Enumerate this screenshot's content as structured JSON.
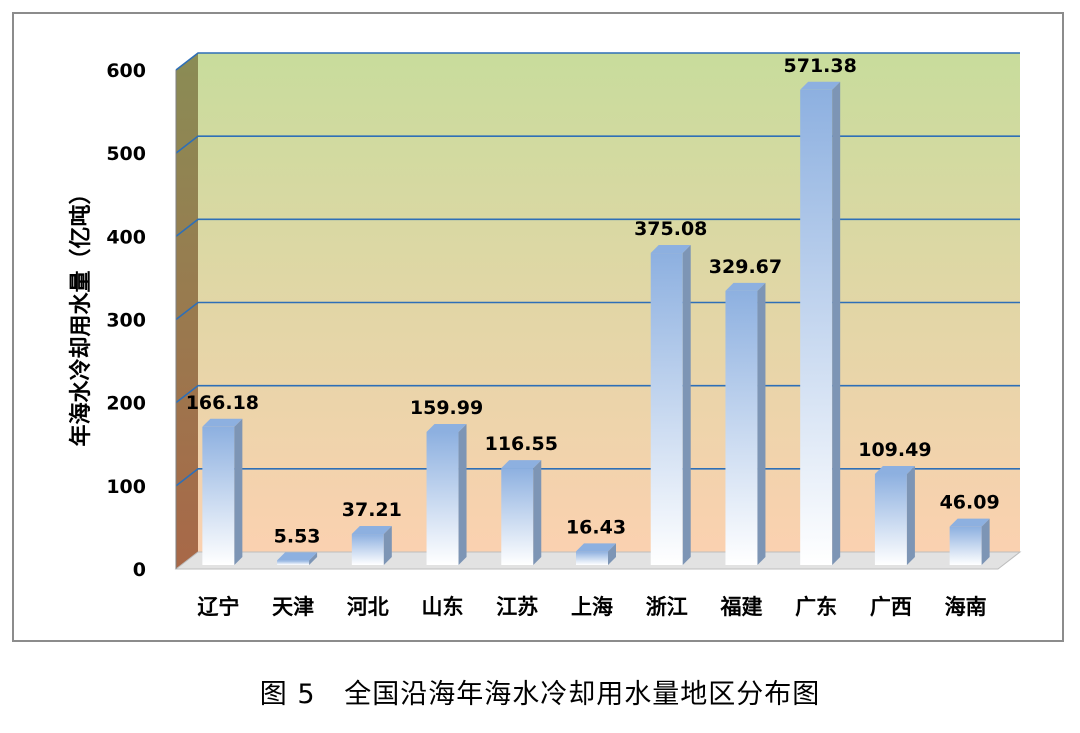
{
  "caption": "图 5   全国沿海年海水冷却用水量地区分布图",
  "chart_data": {
    "type": "bar",
    "title": "",
    "ylabel": "年海水冷却用水量（亿吨）",
    "xlabel": "",
    "ylim": [
      0,
      600
    ],
    "yticks": [
      0,
      100,
      200,
      300,
      400,
      500,
      600
    ],
    "categories": [
      "辽宁",
      "天津",
      "河北",
      "山东",
      "江苏",
      "上海",
      "浙江",
      "福建",
      "广东",
      "广西",
      "海南"
    ],
    "values": [
      166.18,
      5.53,
      37.21,
      159.99,
      116.55,
      16.43,
      375.08,
      329.67,
      571.38,
      109.49,
      46.09
    ],
    "data_labels": [
      "166.18",
      "5.53",
      "37.21",
      "159.99",
      "116.55",
      "16.43",
      "375.08",
      "329.67",
      "571.38",
      "109.49",
      "46.09"
    ],
    "grid": true,
    "colors": {
      "wall_top": "#c8dc9c",
      "wall_bottom": "#fbd1b0",
      "gridline": "#2e6fb7",
      "bar_top": "#8db0e0",
      "bar_bottom": "#ffffff",
      "bar_side": "#7d95b5",
      "side_wall_top": "#8a8c55",
      "side_wall_bottom": "#a86848"
    }
  }
}
